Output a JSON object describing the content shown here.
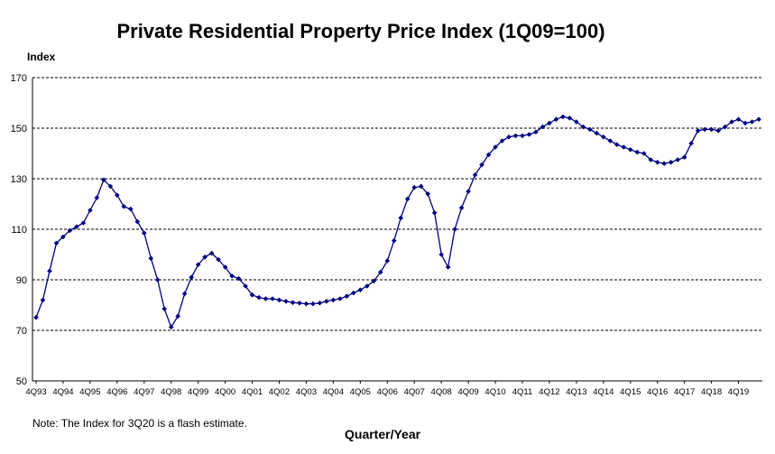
{
  "chart_data": {
    "type": "line",
    "title": "Private Residential Property Price Index (1Q09=100)",
    "ylabel": "Index",
    "xlabel": "Quarter/Year",
    "note": "Note: The Index for 3Q20 is a flash estimate.",
    "ylim": [
      50,
      170
    ],
    "yticks": [
      50,
      70,
      90,
      110,
      130,
      150,
      170
    ],
    "grid": "horizontal dashed",
    "x_tick_labels": [
      "4Q93",
      "4Q94",
      "4Q95",
      "4Q96",
      "4Q97",
      "4Q98",
      "4Q99",
      "4Q00",
      "4Q01",
      "4Q02",
      "4Q03",
      "4Q04",
      "4Q05",
      "4Q06",
      "4Q07",
      "4Q08",
      "4Q09",
      "4Q10",
      "4Q11",
      "4Q12",
      "4Q13",
      "4Q14",
      "4Q15",
      "4Q16",
      "4Q17",
      "4Q18",
      "4Q19"
    ],
    "series_color": "#000080",
    "series": [
      {
        "start_quarter": "4Q93",
        "values": [
          75.1,
          82.0,
          93.5,
          104.5,
          107.0,
          109.5,
          111.0,
          112.5,
          117.5,
          122.5,
          129.5,
          127.0,
          123.5,
          119.0,
          118.0,
          113.0,
          108.5,
          98.5,
          90.0,
          78.5,
          71.3,
          75.6,
          84.5,
          91.0,
          96.0,
          99.0,
          100.5,
          98.0,
          95.0,
          91.5,
          90.5,
          87.5,
          84.0,
          83.0,
          82.5,
          82.5,
          82.0,
          81.5,
          81.0,
          80.8,
          80.5,
          80.5,
          80.8,
          81.5,
          82.0,
          82.5,
          83.5,
          84.8,
          86.0,
          87.5,
          89.5,
          93.0,
          97.5,
          105.5,
          114.5,
          122.0,
          126.5,
          127.0,
          124.0,
          116.5,
          100.0,
          95.0,
          110.0,
          118.5,
          125.0,
          131.5,
          135.5,
          139.5,
          142.5,
          145.0,
          146.5,
          147.0,
          147.0,
          147.5,
          148.5,
          150.5,
          152.0,
          153.5,
          154.5,
          154.0,
          152.5,
          150.5,
          149.5,
          148.0,
          146.5,
          145.0,
          143.5,
          142.5,
          141.5,
          140.5,
          140.0,
          137.5,
          136.5,
          136.0,
          136.5,
          137.5,
          138.5,
          144.0,
          149.0,
          149.5,
          149.5,
          149.0,
          150.5,
          152.5,
          153.5,
          152.0,
          152.5,
          153.5
        ]
      }
    ]
  }
}
